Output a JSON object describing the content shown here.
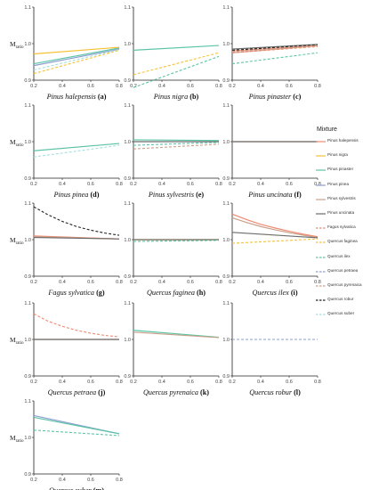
{
  "colors": {
    "Pinus halepensis": "#f08a70",
    "Pinus nigra": "#f5c133",
    "Pinus pinaster": "#5cc4a6",
    "Pinus pinea": "#8d9fd1",
    "Pinus sylvestris": "#c9a089",
    "Pinus uncinata": "#6b6b6b",
    "Fagus sylvatica": "#f08a70",
    "Quercus faginea": "#f5c133",
    "Quercus ilex": "#5cc4a6",
    "Quercus petraea": "#8d9fd1",
    "Quercus pyrenaica": "#c9a089",
    "Quercus robur": "#222222",
    "Quercus suber": "#a8dede"
  },
  "legend": {
    "title": "Mixture",
    "items": [
      {
        "label": "Pinus halepensis",
        "dash": false
      },
      {
        "label": "Pinus nigra",
        "dash": false
      },
      {
        "label": "Pinus pinaster",
        "dash": false
      },
      {
        "label": "Pinus pinea",
        "dash": false
      },
      {
        "label": "Pinus sylvestris",
        "dash": false
      },
      {
        "label": "Pinus uncinata",
        "dash": false
      },
      {
        "label": "Fagus sylvatica",
        "dash": true
      },
      {
        "label": "Quercus faginea",
        "dash": true
      },
      {
        "label": "Quercus ilex",
        "dash": true
      },
      {
        "label": "Quercus petraea",
        "dash": true
      },
      {
        "label": "Quercus pyrenaica",
        "dash": true
      },
      {
        "label": "Quercus robur",
        "dash": true
      },
      {
        "label": "Quercus suber",
        "dash": true
      }
    ]
  },
  "chart_data": [
    {
      "type": "line",
      "title": "Pinus halepensis",
      "panel_letter": "(a)",
      "ylabel": "Mratio",
      "xlim": [
        0.2,
        0.8
      ],
      "ylim": [
        0.9,
        1.1
      ],
      "xticks": [
        "0.2",
        "0.4",
        "0.6",
        "0.8"
      ],
      "yticks": [
        "0.9",
        "1.0",
        "1.1"
      ],
      "series": [
        {
          "name": "Pinus nigra",
          "x": [
            0.2,
            0.8
          ],
          "y": [
            0.972,
            0.99
          ]
        },
        {
          "name": "Pinus pinaster",
          "x": [
            0.2,
            0.8
          ],
          "y": [
            0.945,
            0.988
          ]
        },
        {
          "name": "Pinus pinea",
          "x": [
            0.2,
            0.8
          ],
          "y": [
            0.94,
            0.985
          ]
        },
        {
          "name": "Quercus faginea",
          "x": [
            0.2,
            0.8
          ],
          "y": [
            0.918,
            0.982
          ]
        },
        {
          "name": "Quercus suber",
          "x": [
            0.2,
            0.8
          ],
          "y": [
            0.928,
            0.984
          ]
        }
      ]
    },
    {
      "type": "line",
      "title": "Pinus nigra",
      "panel_letter": "(b)",
      "xlim": [
        0.2,
        0.8
      ],
      "ylim": [
        0.9,
        1.1
      ],
      "xticks": [
        "0.2",
        "0.4",
        "0.6",
        "0.8"
      ],
      "yticks": [
        "0.9",
        "1.0",
        "1.1"
      ],
      "series": [
        {
          "name": "Pinus pinaster",
          "x": [
            0.2,
            0.8
          ],
          "y": [
            0.982,
            0.995
          ]
        },
        {
          "name": "Quercus faginea",
          "x": [
            0.2,
            0.8
          ],
          "y": [
            0.915,
            0.975
          ]
        },
        {
          "name": "Quercus ilex",
          "x": [
            0.2,
            0.8
          ],
          "y": [
            0.88,
            0.965
          ]
        }
      ]
    },
    {
      "type": "line",
      "title": "Pinus pinaster",
      "panel_letter": "(c)",
      "xlim": [
        0.2,
        0.8
      ],
      "ylim": [
        0.9,
        1.1
      ],
      "xticks": [
        "0.2",
        "0.4",
        "0.6",
        "0.8"
      ],
      "yticks": [
        "0.9",
        "1.0",
        "1.1"
      ],
      "series": [
        {
          "name": "Pinus uncinata",
          "x": [
            0.2,
            0.8
          ],
          "y": [
            0.985,
            0.998
          ]
        },
        {
          "name": "Pinus halepensis",
          "x": [
            0.2,
            0.8
          ],
          "y": [
            0.98,
            0.995
          ]
        },
        {
          "name": "Pinus sylvestris",
          "x": [
            0.2,
            0.8
          ],
          "y": [
            0.975,
            0.994
          ]
        },
        {
          "name": "Quercus robur",
          "x": [
            0.2,
            0.8
          ],
          "y": [
            0.982,
            0.997
          ]
        },
        {
          "name": "Fagus sylvatica",
          "x": [
            0.2,
            0.8
          ],
          "y": [
            0.975,
            0.992
          ]
        },
        {
          "name": "Quercus pyrenaica",
          "x": [
            0.2,
            0.8
          ],
          "y": [
            0.978,
            0.995
          ]
        },
        {
          "name": "Quercus ilex",
          "x": [
            0.2,
            0.8
          ],
          "y": [
            0.945,
            0.975
          ]
        }
      ]
    },
    {
      "type": "line",
      "title": "Pinus pinea",
      "panel_letter": "(d)",
      "ylabel": "Mratio",
      "xlim": [
        0.2,
        0.8
      ],
      "ylim": [
        0.9,
        1.1
      ],
      "xticks": [
        "0.2",
        "0.4",
        "0.6",
        "0.8"
      ],
      "yticks": [
        "0.9",
        "1.0",
        "1.1"
      ],
      "series": [
        {
          "name": "Pinus pinaster",
          "x": [
            0.2,
            0.8
          ],
          "y": [
            0.975,
            0.995
          ]
        },
        {
          "name": "Quercus suber",
          "x": [
            0.2,
            0.8
          ],
          "y": [
            0.958,
            0.99
          ]
        }
      ]
    },
    {
      "type": "line",
      "title": "Pinus sylvestris",
      "panel_letter": "(e)",
      "xlim": [
        0.2,
        0.8
      ],
      "ylim": [
        0.9,
        1.1
      ],
      "xticks": [
        "0.2",
        "0.4",
        "0.6",
        "0.8"
      ],
      "yticks": [
        "0.9",
        "1.0",
        "1.1"
      ],
      "series": [
        {
          "name": "Pinus pinaster",
          "x": [
            0.2,
            0.8
          ],
          "y": [
            1.005,
            1.003
          ]
        },
        {
          "name": "Pinus uncinata",
          "x": [
            0.2,
            0.8
          ],
          "y": [
            1.0,
            1.0
          ]
        },
        {
          "name": "Quercus ilex",
          "x": [
            0.2,
            0.8
          ],
          "y": [
            0.99,
            0.998
          ]
        },
        {
          "name": "Quercus pyrenaica",
          "x": [
            0.2,
            0.8
          ],
          "y": [
            0.98,
            0.993
          ]
        }
      ]
    },
    {
      "type": "line",
      "title": "Pinus uncinata",
      "panel_letter": "(f)",
      "xlim": [
        0.2,
        0.8
      ],
      "ylim": [
        0.9,
        1.1
      ],
      "xticks": [
        "0.2",
        "0.4",
        "0.6",
        "0.8"
      ],
      "yticks": [
        "0.9",
        "1.0",
        "1.1"
      ],
      "series": [
        {
          "name": "Pinus sylvestris",
          "x": [
            0.2,
            0.8
          ],
          "y": [
            1.0,
            1.0
          ]
        },
        {
          "name": "Pinus uncinata",
          "x": [
            0.2,
            0.8
          ],
          "y": [
            1.0,
            1.0
          ]
        }
      ]
    },
    {
      "type": "line",
      "title": "Fagus sylvatica",
      "panel_letter": "(g)",
      "ylabel": "Mratio",
      "xlim": [
        0.2,
        0.8
      ],
      "ylim": [
        0.9,
        1.1
      ],
      "xticks": [
        "0.2",
        "0.4",
        "0.6",
        "0.8"
      ],
      "yticks": [
        "0.9",
        "1.0",
        "1.1"
      ],
      "series": [
        {
          "name": "Quercus robur",
          "x": [
            0.2,
            0.3,
            0.4,
            0.5,
            0.6,
            0.7,
            0.8
          ],
          "y": [
            1.09,
            1.068,
            1.05,
            1.036,
            1.026,
            1.018,
            1.012
          ]
        },
        {
          "name": "Pinus halepensis",
          "x": [
            0.2,
            0.8
          ],
          "y": [
            1.01,
            1.002
          ]
        },
        {
          "name": "Pinus sylvestris",
          "x": [
            0.2,
            0.8
          ],
          "y": [
            1.008,
            1.002
          ]
        },
        {
          "name": "Pinus uncinata",
          "x": [
            0.2,
            0.8
          ],
          "y": [
            1.006,
            1.002
          ]
        }
      ]
    },
    {
      "type": "line",
      "title": "Quercus faginea",
      "panel_letter": "(h)",
      "xlim": [
        0.2,
        0.8
      ],
      "ylim": [
        0.9,
        1.1
      ],
      "xticks": [
        "0.2",
        "0.4",
        "0.6",
        "0.8"
      ],
      "yticks": [
        "0.9",
        "1.0",
        "1.1"
      ],
      "series": [
        {
          "name": "Pinus nigra",
          "x": [
            0.2,
            0.8
          ],
          "y": [
            1.0,
            1.0
          ]
        },
        {
          "name": "Pinus uncinata",
          "x": [
            0.2,
            0.8
          ],
          "y": [
            1.0,
            1.0
          ]
        },
        {
          "name": "Quercus ilex",
          "x": [
            0.2,
            0.8
          ],
          "y": [
            0.995,
            0.998
          ]
        }
      ]
    },
    {
      "type": "line",
      "title": "Quercus ilex",
      "panel_letter": "(i)",
      "xlim": [
        0.2,
        0.8
      ],
      "ylim": [
        0.9,
        1.1
      ],
      "xticks": [
        "0.2",
        "0.4",
        "0.6",
        "0.8"
      ],
      "yticks": [
        "0.9",
        "1.0",
        "1.1"
      ],
      "series": [
        {
          "name": "Pinus halepensis",
          "x": [
            0.2,
            0.3,
            0.4,
            0.5,
            0.6,
            0.7,
            0.8
          ],
          "y": [
            1.07,
            1.055,
            1.042,
            1.032,
            1.023,
            1.015,
            1.008
          ]
        },
        {
          "name": "Pinus sylvestris",
          "x": [
            0.2,
            0.3,
            0.4,
            0.5,
            0.6,
            0.7,
            0.8
          ],
          "y": [
            1.06,
            1.047,
            1.036,
            1.027,
            1.019,
            1.012,
            1.006
          ]
        },
        {
          "name": "Pinus uncinata",
          "x": [
            0.2,
            0.8
          ],
          "y": [
            1.02,
            1.005
          ]
        },
        {
          "name": "Quercus faginea",
          "x": [
            0.2,
            0.8
          ],
          "y": [
            0.99,
            1.002
          ]
        }
      ]
    },
    {
      "type": "line",
      "title": "Quercus petraea",
      "panel_letter": "(j)",
      "ylabel": "Mratio",
      "xlim": [
        0.2,
        0.8
      ],
      "ylim": [
        0.9,
        1.1
      ],
      "xticks": [
        "0.2",
        "0.4",
        "0.6",
        "0.8"
      ],
      "yticks": [
        "0.9",
        "1.0",
        "1.1"
      ],
      "series": [
        {
          "name": "Fagus sylvatica",
          "x": [
            0.2,
            0.3,
            0.4,
            0.5,
            0.6,
            0.7,
            0.8
          ],
          "y": [
            1.07,
            1.05,
            1.036,
            1.025,
            1.017,
            1.011,
            1.007
          ]
        },
        {
          "name": "Pinus sylvestris",
          "x": [
            0.2,
            0.8
          ],
          "y": [
            1.0,
            1.0
          ]
        },
        {
          "name": "Pinus uncinata",
          "x": [
            0.2,
            0.8
          ],
          "y": [
            1.0,
            1.0
          ]
        }
      ]
    },
    {
      "type": "line",
      "title": "Quercus pyrenaica",
      "panel_letter": "(k)",
      "xlim": [
        0.2,
        0.8
      ],
      "ylim": [
        0.9,
        1.1
      ],
      "xticks": [
        "0.2",
        "0.4",
        "0.6",
        "0.8"
      ],
      "yticks": [
        "0.9",
        "1.0",
        "1.1"
      ],
      "series": [
        {
          "name": "Pinus pinaster",
          "x": [
            0.2,
            0.8
          ],
          "y": [
            1.025,
            1.006
          ]
        },
        {
          "name": "Pinus sylvestris",
          "x": [
            0.2,
            0.8
          ],
          "y": [
            1.02,
            1.005
          ]
        }
      ]
    },
    {
      "type": "line",
      "title": "Quercus robur",
      "panel_letter": "(l)",
      "xlim": [
        0.2,
        0.8
      ],
      "ylim": [
        0.9,
        1.1
      ],
      "xticks": [
        "0.2",
        "0.4",
        "0.6",
        "0.8"
      ],
      "yticks": [
        "0.9",
        "1.0",
        "1.1"
      ],
      "series": [
        {
          "name": "Quercus petraea",
          "x": [
            0.2,
            0.8
          ],
          "y": [
            1.0,
            1.0
          ]
        }
      ]
    },
    {
      "type": "line",
      "title": "Quercus suber",
      "panel_letter": "(m)",
      "ylabel": "Mratio",
      "xlim": [
        0.2,
        0.8
      ],
      "ylim": [
        0.9,
        1.1
      ],
      "xticks": [
        "0.2",
        "0.4",
        "0.6",
        "0.8"
      ],
      "yticks": [
        "0.9",
        "1.0",
        "1.1"
      ],
      "series": [
        {
          "name": "Pinus pinea",
          "x": [
            0.2,
            0.8
          ],
          "y": [
            1.06,
            1.01
          ]
        },
        {
          "name": "Pinus pinaster",
          "x": [
            0.2,
            0.8
          ],
          "y": [
            1.055,
            1.01
          ]
        },
        {
          "name": "Quercus ilex",
          "x": [
            0.2,
            0.8
          ],
          "y": [
            1.02,
            1.005
          ]
        }
      ]
    }
  ]
}
